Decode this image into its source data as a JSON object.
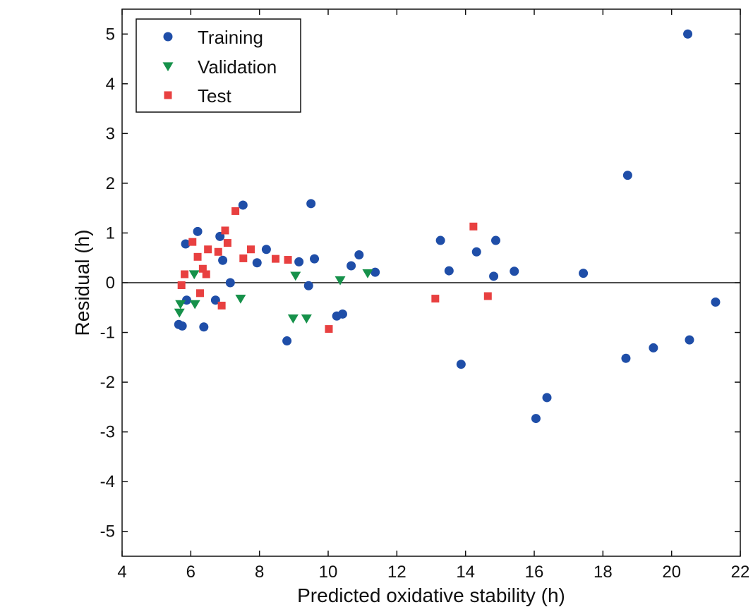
{
  "chart_data": {
    "type": "scatter",
    "xlabel": "Predicted oxidative stability (h)",
    "ylabel": "Residual (h)",
    "xlim": [
      4,
      22
    ],
    "ylim": [
      -5.5,
      5.5
    ],
    "x_ticks": [
      4,
      6,
      8,
      10,
      12,
      14,
      16,
      18,
      20,
      22
    ],
    "y_ticks": [
      -5,
      -4,
      -3,
      -2,
      -1,
      0,
      1,
      2,
      3,
      4,
      5
    ],
    "x_tick_labels": [
      "4",
      "6",
      "8",
      "10",
      "12",
      "14",
      "16",
      "18",
      "20",
      "22"
    ],
    "y_tick_labels": [
      "-5",
      "-4",
      "-3",
      "-2",
      "-1",
      "0",
      "1",
      "2",
      "3",
      "4",
      "5"
    ],
    "grid": false,
    "legend_position": "top-left",
    "reference_line_y": 0,
    "series": [
      {
        "name": "Training",
        "marker": "circle",
        "color": "#1f4ea8",
        "points": [
          [
            5.65,
            -0.84
          ],
          [
            5.75,
            -0.87
          ],
          [
            5.85,
            0.78
          ],
          [
            5.88,
            -0.35
          ],
          [
            6.2,
            1.03
          ],
          [
            6.38,
            -0.89
          ],
          [
            6.72,
            -0.35
          ],
          [
            6.85,
            0.93
          ],
          [
            6.93,
            0.45
          ],
          [
            7.15,
            0.0
          ],
          [
            7.52,
            1.56
          ],
          [
            7.93,
            0.4
          ],
          [
            8.2,
            0.67
          ],
          [
            8.8,
            -1.17
          ],
          [
            9.15,
            0.42
          ],
          [
            9.43,
            -0.06
          ],
          [
            9.5,
            1.59
          ],
          [
            9.6,
            0.48
          ],
          [
            10.25,
            -0.67
          ],
          [
            10.42,
            -0.63
          ],
          [
            10.67,
            0.34
          ],
          [
            10.9,
            0.56
          ],
          [
            11.37,
            0.21
          ],
          [
            13.27,
            0.85
          ],
          [
            13.52,
            0.24
          ],
          [
            13.87,
            -1.64
          ],
          [
            14.32,
            0.62
          ],
          [
            14.82,
            0.13
          ],
          [
            14.88,
            0.85
          ],
          [
            15.42,
            0.23
          ],
          [
            16.05,
            -2.73
          ],
          [
            16.37,
            -2.31
          ],
          [
            17.43,
            0.19
          ],
          [
            18.67,
            -1.52
          ],
          [
            18.72,
            2.16
          ],
          [
            19.47,
            -1.31
          ],
          [
            20.47,
            5.0
          ],
          [
            20.52,
            -1.15
          ],
          [
            21.28,
            -0.39
          ]
        ]
      },
      {
        "name": "Validation",
        "marker": "triangle-down",
        "color": "#16914a",
        "points": [
          [
            5.67,
            -0.6
          ],
          [
            5.7,
            -0.43
          ],
          [
            6.1,
            0.17
          ],
          [
            6.12,
            -0.43
          ],
          [
            7.45,
            -0.32
          ],
          [
            8.98,
            -0.72
          ],
          [
            9.05,
            0.14
          ],
          [
            9.37,
            -0.72
          ],
          [
            10.35,
            0.05
          ],
          [
            11.15,
            0.19
          ]
        ]
      },
      {
        "name": "Test",
        "marker": "square",
        "color": "#e84040",
        "points": [
          [
            5.73,
            -0.05
          ],
          [
            5.82,
            0.17
          ],
          [
            6.05,
            0.82
          ],
          [
            6.2,
            0.52
          ],
          [
            6.27,
            -0.21
          ],
          [
            6.35,
            0.28
          ],
          [
            6.45,
            0.17
          ],
          [
            6.5,
            0.67
          ],
          [
            6.8,
            0.62
          ],
          [
            6.9,
            -0.46
          ],
          [
            7.0,
            1.05
          ],
          [
            7.07,
            0.8
          ],
          [
            7.3,
            1.44
          ],
          [
            7.53,
            0.49
          ],
          [
            7.75,
            0.67
          ],
          [
            8.47,
            0.48
          ],
          [
            8.83,
            0.46
          ],
          [
            10.02,
            -0.93
          ],
          [
            13.12,
            -0.32
          ],
          [
            14.23,
            1.13
          ],
          [
            14.65,
            -0.27
          ]
        ]
      }
    ]
  },
  "legend": {
    "items": [
      {
        "label": "Training",
        "marker": "circle",
        "color": "#1f4ea8"
      },
      {
        "label": "Validation",
        "marker": "triangle-down",
        "color": "#16914a"
      },
      {
        "label": "Test",
        "marker": "square",
        "color": "#e84040"
      }
    ]
  }
}
